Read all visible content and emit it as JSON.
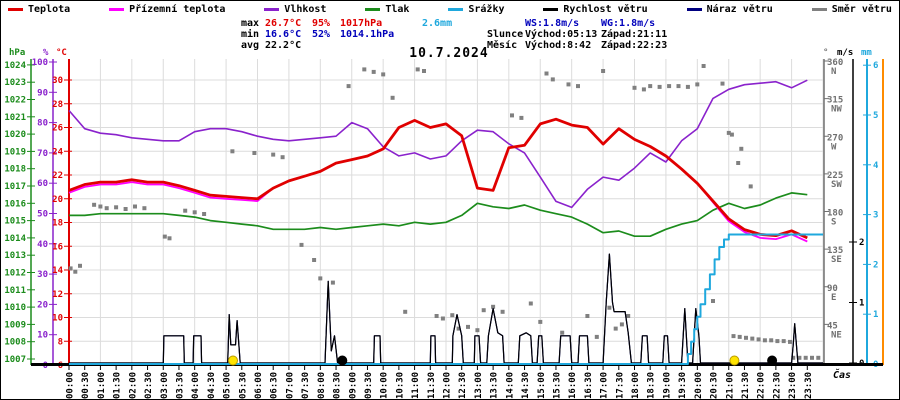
{
  "title": "10.7.2024",
  "legend": [
    {
      "label": "Teplota",
      "color": "#e00000"
    },
    {
      "label": "Přízemní teplota",
      "color": "#ff00ff"
    },
    {
      "label": "Vlhkost",
      "color": "#8a22cc"
    },
    {
      "label": "Tlak",
      "color": "#1c8c1c"
    },
    {
      "label": "Srážky",
      "color": "#1fa8dd"
    },
    {
      "label": "Rychlost větru",
      "color": "#000000"
    },
    {
      "label": "Náraz větru",
      "color": "#000080"
    },
    {
      "label": "Směr větru",
      "color": "#808080"
    }
  ],
  "stats": {
    "rows": [
      {
        "label": "max",
        "temp": "26.7°C",
        "hum": "95%",
        "pres": "1017hPa",
        "rain": "2.6mm",
        "cls": "c-max"
      },
      {
        "label": "min",
        "temp": "16.6°C",
        "hum": "52%",
        "pres": "1014.1hPa",
        "rain": "",
        "cls": "c-min"
      },
      {
        "label": "avg",
        "temp": "22.2°C",
        "hum": "",
        "pres": "",
        "rain": "",
        "cls": "c-avg"
      }
    ]
  },
  "astro": {
    "ws": "WS:1.8m/s",
    "wg": "WG:1.8m/s",
    "rows": [
      {
        "label": "Slunce",
        "rise": "Východ:05:13",
        "set": "Západ:21:11"
      },
      {
        "label": "Měsíc",
        "rise": "Východ:8:42",
        "set": "Západ:22:23"
      }
    ]
  },
  "axes": {
    "left_units": [
      "hPa",
      "%",
      "°C"
    ],
    "right_units": [
      "°",
      "m/s",
      "mm"
    ],
    "xlabel": "Čas",
    "hpa_ticks": [
      1007,
      1008,
      1009,
      1010,
      1011,
      1012,
      1013,
      1014,
      1015,
      1016,
      1017,
      1018,
      1019,
      1020,
      1021,
      1022,
      1023,
      1024
    ],
    "pct_ticks": [
      0,
      10,
      20,
      30,
      40,
      50,
      60,
      70,
      80,
      90,
      100
    ],
    "degc_ticks": [
      6,
      8,
      10,
      12,
      14,
      16,
      18,
      20,
      22,
      24,
      26,
      28,
      30
    ],
    "deg_ticks": [
      {
        "v": 360,
        "c": "N"
      },
      {
        "v": 315,
        "c": "NW"
      },
      {
        "v": 270,
        "c": "W"
      },
      {
        "v": 225,
        "c": "SW"
      },
      {
        "v": 180,
        "c": "S"
      },
      {
        "v": 135,
        "c": "SE"
      },
      {
        "v": 90,
        "c": "E"
      },
      {
        "v": 45,
        "c": "NE"
      }
    ],
    "ms_ticks": [
      0,
      1,
      2
    ],
    "mm_ticks": [
      0,
      1,
      2,
      3,
      4,
      5,
      6
    ],
    "x_ticks": [
      "00:00",
      "00:30",
      "01:00",
      "01:30",
      "02:00",
      "02:30",
      "03:00",
      "03:30",
      "04:00",
      "04:30",
      "05:00",
      "05:30",
      "06:00",
      "06:30",
      "07:00",
      "07:30",
      "08:00",
      "08:30",
      "09:00",
      "09:30",
      "10:00",
      "10:30",
      "11:00",
      "11:30",
      "12:00",
      "12:30",
      "13:00",
      "13:30",
      "14:00",
      "14:30",
      "15:00",
      "15:30",
      "16:00",
      "16:30",
      "17:00",
      "17:30",
      "18:00",
      "18:30",
      "19:00",
      "19:30",
      "20:00",
      "20:30",
      "21:00",
      "21:30",
      "22:00",
      "22:30",
      "23:00",
      "23:30"
    ]
  },
  "colors": {
    "temp": "#e00000",
    "ground": "#ff00ff",
    "humidity": "#8a22cc",
    "pressure": "#1c8c1c",
    "precip": "#1fa8dd",
    "wind": "#000000",
    "gust": "#000080",
    "direction": "#808080",
    "axis_deg": "#707070",
    "frame_orange": "#ff8c00",
    "grid": "#dcdcdc",
    "sun": "#ffe400",
    "moon": "#000000"
  },
  "chart_data": {
    "type": "line",
    "x_hours_step": 0.5,
    "xlim_hours": [
      0,
      24
    ],
    "ylim_c": [
      6,
      31.8
    ],
    "ylim_pct": [
      0,
      101
    ],
    "ylim_hpa": [
      1006.6,
      1024.3
    ],
    "ylim_mm": [
      0,
      6.1
    ],
    "ylim_ms": [
      0,
      5
    ],
    "ylim_deg": [
      0,
      363
    ],
    "series": [
      {
        "name": "Teplota",
        "unit": "°C",
        "values": [
          20.7,
          21.2,
          21.4,
          21.4,
          21.6,
          21.4,
          21.4,
          21.1,
          20.7,
          20.3,
          20.2,
          20.1,
          20.0,
          20.9,
          21.5,
          21.9,
          22.3,
          23.0,
          23.3,
          23.6,
          24.2,
          26.0,
          26.6,
          26.0,
          26.3,
          25.3,
          20.9,
          20.7,
          24.3,
          24.5,
          26.3,
          26.7,
          26.2,
          26.0,
          24.6,
          25.9,
          25.0,
          24.4,
          23.6,
          22.5,
          21.3,
          19.8,
          18.3,
          17.4,
          17.0,
          16.9,
          17.3,
          16.7
        ]
      },
      {
        "name": "Přízemní teplota",
        "unit": "°C",
        "values": [
          20.5,
          21.0,
          21.2,
          21.2,
          21.4,
          21.2,
          21.2,
          20.9,
          20.5,
          20.1,
          20.0,
          19.9,
          19.8,
          20.9,
          21.5,
          21.9,
          22.3,
          23.0,
          23.3,
          23.6,
          24.2,
          26.0,
          26.6,
          26.0,
          26.3,
          25.3,
          20.9,
          20.7,
          24.3,
          24.5,
          26.3,
          26.7,
          26.2,
          26.0,
          24.6,
          25.9,
          25.0,
          24.4,
          23.6,
          22.5,
          21.3,
          19.7,
          18.1,
          17.2,
          16.7,
          16.6,
          17.0,
          16.4
        ]
      },
      {
        "name": "Vlhkost",
        "unit": "%",
        "values": [
          84,
          78,
          76.5,
          76,
          75,
          74.5,
          74,
          74,
          77,
          78,
          78,
          77,
          75.5,
          74.5,
          74,
          74.5,
          75,
          75.5,
          80,
          78,
          72,
          69,
          70,
          68,
          69,
          74,
          77.5,
          77,
          73,
          70,
          62,
          54,
          52,
          58,
          62,
          61,
          65,
          70,
          67,
          74,
          78,
          88,
          91,
          92.5,
          93,
          93.5,
          91.5,
          94
        ]
      },
      {
        "name": "Tlak",
        "unit": "hPa",
        "values": [
          1015.3,
          1015.3,
          1015.4,
          1015.4,
          1015.4,
          1015.4,
          1015.4,
          1015.3,
          1015.2,
          1015.0,
          1014.9,
          1014.8,
          1014.7,
          1014.5,
          1014.5,
          1014.5,
          1014.6,
          1014.5,
          1014.6,
          1014.7,
          1014.8,
          1014.7,
          1014.9,
          1014.8,
          1014.9,
          1015.3,
          1016.0,
          1015.8,
          1015.7,
          1015.9,
          1015.6,
          1015.4,
          1015.2,
          1014.8,
          1014.3,
          1014.4,
          1014.1,
          1014.1,
          1014.5,
          1014.8,
          1015.0,
          1015.6,
          1016.0,
          1015.7,
          1015.9,
          1016.3,
          1016.6,
          1016.5
        ]
      }
    ],
    "precip_mm_cumulative": [
      [
        0,
        0
      ],
      [
        19.6,
        0
      ],
      [
        19.7,
        0.2
      ],
      [
        19.8,
        0.45
      ],
      [
        19.9,
        0.7
      ],
      [
        20.0,
        0.95
      ],
      [
        20.1,
        1.2
      ],
      [
        20.25,
        1.5
      ],
      [
        20.4,
        1.8
      ],
      [
        20.55,
        2.1
      ],
      [
        20.7,
        2.35
      ],
      [
        20.85,
        2.5
      ],
      [
        21.0,
        2.6
      ],
      [
        24,
        2.6
      ]
    ],
    "wind_speed_ms": [
      [
        0,
        0
      ],
      [
        3.0,
        0
      ],
      [
        3.02,
        0.45
      ],
      [
        3.65,
        0.45
      ],
      [
        3.67,
        0
      ],
      [
        3.95,
        0
      ],
      [
        3.97,
        0.45
      ],
      [
        4.2,
        0.45
      ],
      [
        4.22,
        0
      ],
      [
        5.05,
        0
      ],
      [
        5.1,
        0.8
      ],
      [
        5.15,
        0.3
      ],
      [
        5.3,
        0.3
      ],
      [
        5.35,
        0.7
      ],
      [
        5.45,
        0
      ],
      [
        8.15,
        0
      ],
      [
        8.25,
        1.35
      ],
      [
        8.35,
        0.2
      ],
      [
        8.45,
        0.45
      ],
      [
        8.55,
        0
      ],
      [
        9.7,
        0
      ],
      [
        9.72,
        0.45
      ],
      [
        9.9,
        0.45
      ],
      [
        9.92,
        0
      ],
      [
        11.5,
        0
      ],
      [
        11.52,
        0.45
      ],
      [
        11.65,
        0.45
      ],
      [
        11.67,
        0
      ],
      [
        12.2,
        0
      ],
      [
        12.22,
        0.45
      ],
      [
        12.35,
        0.8
      ],
      [
        12.5,
        0.45
      ],
      [
        12.55,
        0
      ],
      [
        12.9,
        0
      ],
      [
        12.92,
        0.45
      ],
      [
        13.05,
        0.45
      ],
      [
        13.1,
        0
      ],
      [
        13.3,
        0
      ],
      [
        13.35,
        0.45
      ],
      [
        13.5,
        0.9
      ],
      [
        13.65,
        0.5
      ],
      [
        13.8,
        0.45
      ],
      [
        13.85,
        0
      ],
      [
        14.3,
        0
      ],
      [
        14.35,
        0.45
      ],
      [
        14.55,
        0.5
      ],
      [
        14.7,
        0.45
      ],
      [
        14.75,
        0
      ],
      [
        14.9,
        0
      ],
      [
        14.95,
        0.45
      ],
      [
        15.05,
        0.45
      ],
      [
        15.1,
        0
      ],
      [
        15.6,
        0
      ],
      [
        15.65,
        0.45
      ],
      [
        15.95,
        0.45
      ],
      [
        16,
        0
      ],
      [
        16.2,
        0
      ],
      [
        16.25,
        0.45
      ],
      [
        16.5,
        0.45
      ],
      [
        16.55,
        0
      ],
      [
        17.0,
        0
      ],
      [
        17.1,
        1.0
      ],
      [
        17.2,
        1.8
      ],
      [
        17.3,
        1.0
      ],
      [
        17.35,
        0.85
      ],
      [
        17.7,
        0.85
      ],
      [
        17.8,
        0.5
      ],
      [
        17.9,
        0
      ],
      [
        18.2,
        0
      ],
      [
        18.25,
        0.45
      ],
      [
        18.4,
        0.45
      ],
      [
        18.45,
        0
      ],
      [
        18.9,
        0
      ],
      [
        18.95,
        0.45
      ],
      [
        19.05,
        0.45
      ],
      [
        19.1,
        0
      ],
      [
        19.5,
        0
      ],
      [
        19.55,
        0.45
      ],
      [
        19.6,
        0.9
      ],
      [
        19.7,
        0
      ],
      [
        19.85,
        0
      ],
      [
        19.95,
        0.9
      ],
      [
        20.05,
        0.45
      ],
      [
        20.1,
        0
      ],
      [
        23.0,
        0
      ],
      [
        23.05,
        0.3
      ],
      [
        23.1,
        0.65
      ],
      [
        23.2,
        0
      ],
      [
        24,
        0
      ]
    ],
    "wind_gust_equals_speed": true,
    "wind_direction_deg": [
      [
        0.05,
        112
      ],
      [
        0.2,
        108
      ],
      [
        0.35,
        115
      ],
      [
        0.8,
        188
      ],
      [
        1.0,
        186
      ],
      [
        1.2,
        184
      ],
      [
        1.5,
        185
      ],
      [
        1.8,
        183
      ],
      [
        2.1,
        186
      ],
      [
        2.4,
        184
      ],
      [
        3.05,
        150
      ],
      [
        3.2,
        148
      ],
      [
        3.7,
        181
      ],
      [
        4.0,
        179
      ],
      [
        4.3,
        177
      ],
      [
        5.2,
        252
      ],
      [
        5.9,
        250
      ],
      [
        6.5,
        248
      ],
      [
        6.8,
        245
      ],
      [
        7.4,
        140
      ],
      [
        7.8,
        122
      ],
      [
        8.0,
        100
      ],
      [
        8.4,
        95
      ],
      [
        8.9,
        330
      ],
      [
        9.4,
        350
      ],
      [
        9.7,
        347
      ],
      [
        10.0,
        344
      ],
      [
        10.3,
        316
      ],
      [
        10.7,
        60
      ],
      [
        11.1,
        350
      ],
      [
        11.3,
        348
      ],
      [
        11.7,
        55
      ],
      [
        11.9,
        52
      ],
      [
        12.2,
        56
      ],
      [
        12.4,
        40
      ],
      [
        12.7,
        42
      ],
      [
        13.0,
        38
      ],
      [
        13.2,
        62
      ],
      [
        13.5,
        66
      ],
      [
        13.8,
        60
      ],
      [
        14.1,
        295
      ],
      [
        14.4,
        292
      ],
      [
        14.7,
        70
      ],
      [
        15.0,
        48
      ],
      [
        15.2,
        345
      ],
      [
        15.4,
        338
      ],
      [
        15.7,
        35
      ],
      [
        15.9,
        332
      ],
      [
        16.2,
        330
      ],
      [
        16.5,
        55
      ],
      [
        16.8,
        30
      ],
      [
        17.0,
        348
      ],
      [
        17.2,
        65
      ],
      [
        17.4,
        40
      ],
      [
        17.6,
        45
      ],
      [
        17.8,
        55
      ],
      [
        18.0,
        328
      ],
      [
        18.3,
        326
      ],
      [
        18.5,
        330
      ],
      [
        18.8,
        329
      ],
      [
        19.1,
        330
      ],
      [
        19.4,
        330
      ],
      [
        19.7,
        329
      ],
      [
        20.0,
        332
      ],
      [
        20.2,
        354
      ],
      [
        20.5,
        73
      ],
      [
        20.8,
        333
      ],
      [
        21.0,
        274
      ],
      [
        21.1,
        272
      ],
      [
        21.3,
        238
      ],
      [
        21.4,
        255
      ],
      [
        21.7,
        210
      ],
      [
        21.15,
        31
      ],
      [
        21.35,
        30
      ],
      [
        21.55,
        29
      ],
      [
        21.75,
        28
      ],
      [
        21.95,
        27
      ],
      [
        22.15,
        26
      ],
      [
        22.35,
        26
      ],
      [
        22.55,
        25
      ],
      [
        22.75,
        25
      ],
      [
        22.95,
        24
      ],
      [
        23.05,
        5
      ],
      [
        23.25,
        5
      ],
      [
        23.45,
        5
      ],
      [
        23.65,
        5
      ],
      [
        23.85,
        5
      ]
    ],
    "markers": [
      {
        "h": 5.22,
        "kind": "sun"
      },
      {
        "h": 8.7,
        "kind": "moon"
      },
      {
        "h": 21.18,
        "kind": "sun"
      },
      {
        "h": 22.38,
        "kind": "moon"
      }
    ]
  }
}
